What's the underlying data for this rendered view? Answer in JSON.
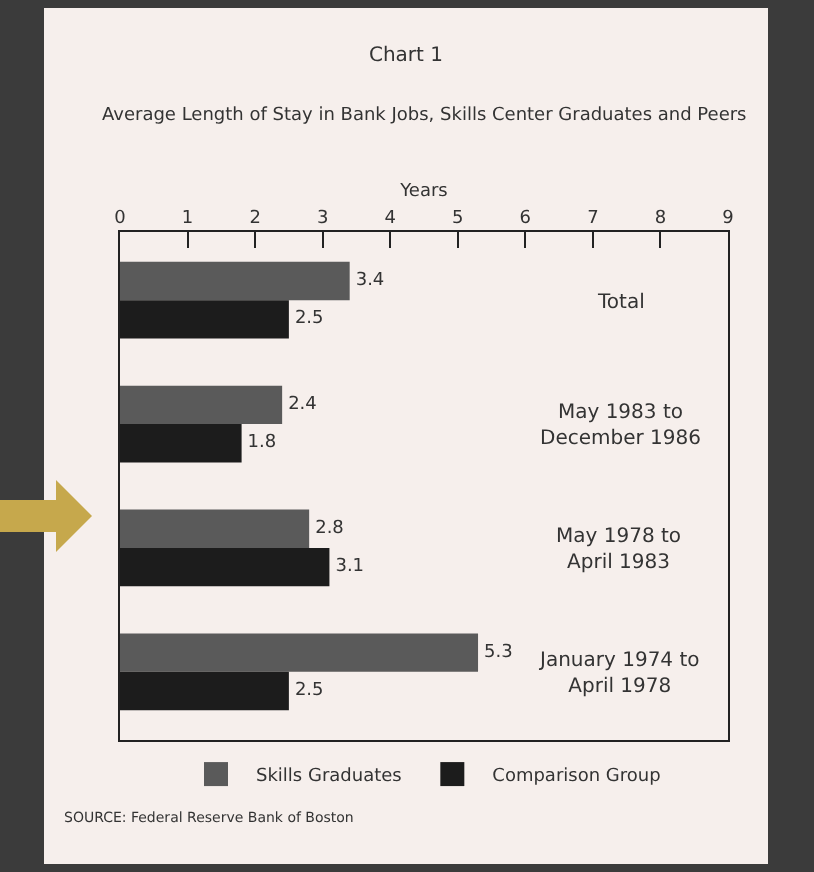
{
  "chart_data": {
    "type": "bar",
    "orientation": "horizontal",
    "title": "Chart 1",
    "subtitle": "Average Length of Stay in Bank Jobs, Skills Center Graduates and Peers",
    "xlabel": "Years",
    "categories": [
      "Total",
      "May 1983 to December 1986",
      "May 1978 to April 1983",
      "January 1974 to April 1978"
    ],
    "series": [
      {
        "name": "Skills Graduates",
        "color": "#5a5a5a",
        "values": [
          3.4,
          2.4,
          2.8,
          5.3
        ]
      },
      {
        "name": "Comparison Group",
        "color": "#1c1c1c",
        "values": [
          2.5,
          1.8,
          3.1,
          2.5
        ]
      }
    ],
    "xlim": [
      0,
      9
    ],
    "xticks": [
      0,
      1,
      2,
      3,
      4,
      5,
      6,
      7,
      8,
      9
    ],
    "grid": false,
    "legend": "bottom",
    "data_labels": true,
    "annotations": [
      "SOURCE: Federal Reserve Bank of Boston"
    ]
  }
}
